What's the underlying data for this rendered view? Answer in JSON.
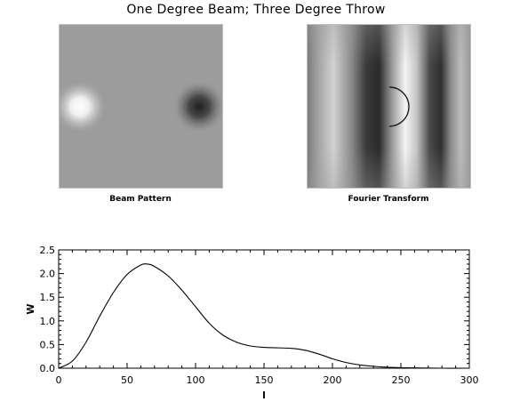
{
  "title": "One Degree Beam; Three Degree Throw",
  "panels": {
    "left_label": "Beam Pattern",
    "right_label": "Fourier Transform"
  },
  "chart_data": {
    "type": "line",
    "title": "",
    "xlabel": "l",
    "ylabel": "W",
    "xlim": [
      0,
      300
    ],
    "ylim": [
      0.0,
      2.5
    ],
    "xticks": [
      0,
      50,
      100,
      150,
      200,
      250,
      300
    ],
    "yticks": [
      "0.0",
      "0.5",
      "1.0",
      "1.5",
      "2.0",
      "2.5"
    ],
    "grid": false,
    "series": [
      {
        "x": [
          0,
          10,
          20,
          30,
          40,
          50,
          60,
          65,
          70,
          80,
          90,
          100,
          110,
          120,
          130,
          140,
          150,
          160,
          170,
          180,
          190,
          200,
          210,
          220,
          230,
          240,
          250,
          260,
          280,
          300
        ],
        "y": [
          0.0,
          0.15,
          0.55,
          1.1,
          1.6,
          1.98,
          2.18,
          2.2,
          2.15,
          1.95,
          1.65,
          1.3,
          0.95,
          0.7,
          0.55,
          0.47,
          0.44,
          0.43,
          0.42,
          0.38,
          0.3,
          0.2,
          0.12,
          0.07,
          0.04,
          0.02,
          0.01,
          0.005,
          0.0,
          0.0
        ]
      }
    ]
  }
}
